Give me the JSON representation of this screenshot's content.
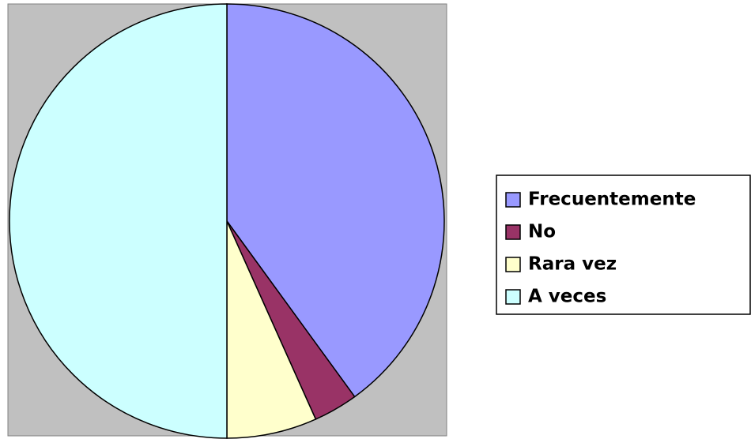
{
  "chart_data": {
    "type": "pie",
    "categories": [
      "Frecuentemente",
      "No",
      "Rara vez",
      "A veces"
    ],
    "values": [
      40,
      3.3,
      6.7,
      50
    ],
    "colors": [
      "#9999ff",
      "#993366",
      "#ffffcc",
      "#ccffff"
    ],
    "legend": "right"
  }
}
